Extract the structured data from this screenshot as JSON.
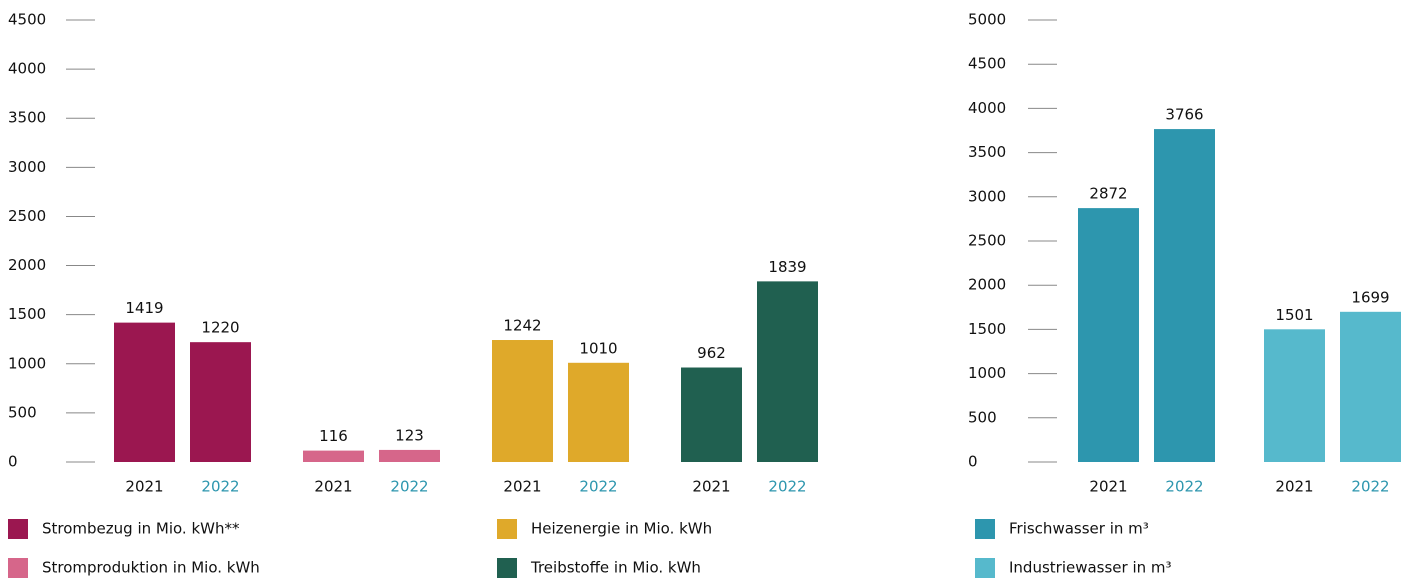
{
  "chart_data": [
    {
      "type": "bar",
      "categories": [
        "2021",
        "2022"
      ],
      "category_colors": [
        "#111111",
        "#2d96ae"
      ],
      "series": [
        {
          "name": "Strombezug in Mio. kWh**",
          "color": "#9b1750",
          "values": [
            1419,
            1220
          ]
        },
        {
          "name": "Stromproduktion in Mio. kWh",
          "color": "#d6668a",
          "values": [
            116,
            123
          ]
        },
        {
          "name": "Heizenergie in Mio. kWh",
          "color": "#dfa92a",
          "values": [
            1242,
            1010
          ]
        },
        {
          "name": "Treibstoffe in Mio. kWh",
          "color": "#206050",
          "values": [
            962,
            1839
          ]
        }
      ],
      "ylim": [
        0,
        4500
      ],
      "yticks": [
        0,
        500,
        1000,
        1500,
        2000,
        2500,
        3000,
        3500,
        4000,
        4500
      ]
    },
    {
      "type": "bar",
      "categories": [
        "2021",
        "2022"
      ],
      "category_colors": [
        "#111111",
        "#2d96ae"
      ],
      "series": [
        {
          "name": "Frischwasser in m³",
          "color": "#2d96ae",
          "values": [
            2872,
            3766
          ]
        },
        {
          "name": "Industriewasser in m³",
          "color": "#56b9cc",
          "values": [
            1501,
            1699
          ]
        }
      ],
      "ylim": [
        0,
        5000
      ],
      "yticks": [
        0,
        500,
        1000,
        1500,
        2000,
        2500,
        3000,
        3500,
        4000,
        4500,
        5000
      ]
    }
  ]
}
